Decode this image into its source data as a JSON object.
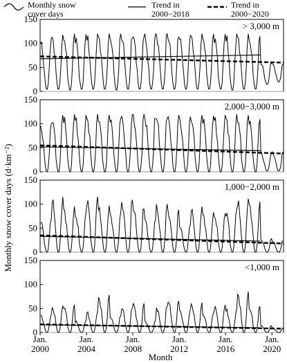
{
  "chart_data": {
    "type": "line",
    "ylabel": "Monthly snow cover days (d·km⁻²)",
    "xlabel": "Month",
    "x_range": [
      "2000-01",
      "2020-12"
    ],
    "x_ticks": [
      {
        "date": "2000-01",
        "line1": "Jan.",
        "line2": "2000"
      },
      {
        "date": "2004-01",
        "line1": "Jan.",
        "line2": "2004"
      },
      {
        "date": "2008-01",
        "line1": "Jan.",
        "line2": "2008"
      },
      {
        "date": "2012-01",
        "line1": "Jan.",
        "line2": "2012"
      },
      {
        "date": "2016-01",
        "line1": "Jan.",
        "line2": "2016"
      },
      {
        "date": "2020-01",
        "line1": "Jan.",
        "line2": "2020"
      }
    ],
    "ylim": [
      0,
      150
    ],
    "y_ticks": [
      0,
      50,
      100,
      150
    ],
    "legend": {
      "placement": "top",
      "entries": [
        {
          "style": "wave",
          "line1": "Monthly snow",
          "line2": "cover days"
        },
        {
          "style": "solid",
          "line1": "Trend in",
          "line2": "2000−2018"
        },
        {
          "style": "dashed",
          "line1": "Trend in",
          "line2": "2000−2020"
        }
      ]
    },
    "panels": [
      {
        "label": "> 3,000 m",
        "annual_peaks": [
          110,
          118,
          120,
          120,
          120,
          120,
          120,
          120,
          120,
          120,
          122,
          120,
          118,
          120,
          120,
          120,
          120,
          120,
          115,
          62,
          60
        ],
        "summer_minima": [
          5,
          5,
          3,
          5,
          5,
          5,
          3,
          5,
          5,
          5,
          5,
          5,
          5,
          5,
          5,
          5,
          3,
          5,
          5,
          15,
          20
        ],
        "trend_2000_2018": [
          {
            "date": "2000-01",
            "y": 68
          },
          {
            "date": "2018-12",
            "y": 76
          }
        ],
        "trend_2000_2020": [
          {
            "date": "2000-01",
            "y": 73
          },
          {
            "date": "2020-12",
            "y": 60
          }
        ]
      },
      {
        "label": "2,000−3,000 m",
        "annual_peaks": [
          100,
          118,
          120,
          118,
          120,
          120,
          118,
          120,
          120,
          118,
          120,
          118,
          115,
          118,
          118,
          118,
          120,
          118,
          115,
          40,
          42
        ],
        "summer_minima": [
          0,
          0,
          0,
          0,
          0,
          0,
          0,
          0,
          0,
          0,
          0,
          0,
          0,
          0,
          0,
          0,
          0,
          0,
          0,
          2,
          2
        ],
        "trend_2000_2018": [
          {
            "date": "2000-01",
            "y": 52
          },
          {
            "date": "2018-12",
            "y": 44
          }
        ],
        "trend_2000_2020": [
          {
            "date": "2000-01",
            "y": 55
          },
          {
            "date": "2020-12",
            "y": 38
          }
        ]
      },
      {
        "label": "1,000−2,000 m",
        "annual_peaks": [
          70,
          115,
          95,
          82,
          118,
          98,
          83,
          110,
          98,
          72,
          100,
          88,
          58,
          95,
          83,
          80,
          90,
          112,
          105,
          28,
          25
        ],
        "summer_minima": [
          0,
          0,
          0,
          0,
          0,
          0,
          0,
          0,
          0,
          0,
          0,
          0,
          0,
          0,
          0,
          0,
          0,
          0,
          0,
          0,
          0
        ],
        "trend_2000_2018": [
          {
            "date": "2000-01",
            "y": 33
          },
          {
            "date": "2018-12",
            "y": 23
          }
        ],
        "trend_2000_2020": [
          {
            "date": "2000-01",
            "y": 35
          },
          {
            "date": "2020-12",
            "y": 18
          }
        ]
      },
      {
        "label": "<1,000 m",
        "annual_peaks": [
          38,
          55,
          58,
          25,
          45,
          78,
          35,
          55,
          62,
          25,
          55,
          70,
          48,
          62,
          40,
          58,
          50,
          85,
          55,
          15,
          10
        ],
        "summer_minima": [
          0,
          0,
          0,
          0,
          0,
          0,
          0,
          0,
          0,
          0,
          0,
          0,
          0,
          0,
          0,
          0,
          0,
          0,
          0,
          0,
          0
        ],
        "trend_2000_2018": [
          {
            "date": "2000-01",
            "y": 16
          },
          {
            "date": "2018-12",
            "y": 10
          }
        ],
        "trend_2000_2020": [
          {
            "date": "2000-01",
            "y": 17
          },
          {
            "date": "2020-12",
            "y": 8
          }
        ]
      }
    ]
  }
}
